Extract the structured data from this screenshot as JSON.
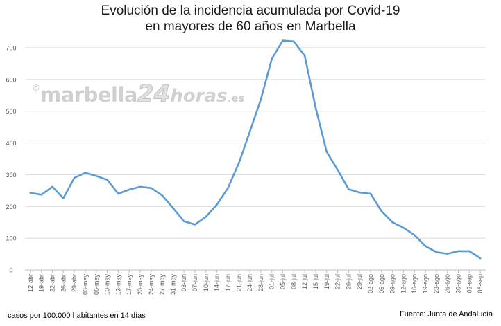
{
  "title_line1": "Evolución de la incidencia acumulada por Covid-19",
  "title_line2": "en mayores de 60 años en Marbella",
  "note_left": "casos por 100.000 habitantes en 14 días",
  "note_right": "Fuente: Junta de Andalucía",
  "watermark": {
    "copy": "©",
    "main": "marbella",
    "num": "24",
    "horas": "horas",
    "tld": ".es"
  },
  "colors": {
    "line": "#5b9bd5",
    "grid": "#d9d9d9",
    "axis_text": "#595959"
  },
  "chart_data": {
    "type": "line",
    "title": "Evolución de la incidencia acumulada por Covid-19 en mayores de 60 años en Marbella",
    "xlabel": "",
    "ylabel": "",
    "ylim": [
      0,
      700
    ],
    "yticks": [
      0,
      100,
      200,
      300,
      400,
      500,
      600,
      700
    ],
    "grid": true,
    "x": [
      "12-abr",
      "19-abr",
      "22-abr",
      "26-abr",
      "29-abr",
      "03-may",
      "06-may",
      "10-may",
      "13-may",
      "17-may",
      "20-may",
      "24-may",
      "27-may",
      "31-may",
      "03-jun",
      "07-jun",
      "10-jun",
      "14-jun",
      "17-jun",
      "21-jun",
      "24-jun",
      "28-jun",
      "01-jul",
      "05-jul",
      "08-jul",
      "12-jul",
      "15-jul",
      "19-jul",
      "22-jul",
      "26-jul",
      "29-jul",
      "02-ago",
      "05-ago",
      "09-ago",
      "12-ago",
      "16-ago",
      "19-ago",
      "23-ago",
      "26-ago",
      "30-ago",
      "02-sep",
      "06-sep"
    ],
    "series": [
      {
        "values": [
          243,
          237,
          262,
          226,
          290,
          306,
          296,
          284,
          240,
          253,
          262,
          258,
          235,
          195,
          153,
          143,
          168,
          206,
          258,
          337,
          436,
          537,
          665,
          723,
          720,
          675,
          510,
          372,
          315,
          254,
          244,
          240,
          185,
          150,
          133,
          110,
          75,
          56,
          51,
          59,
          59,
          37
        ]
      }
    ]
  }
}
